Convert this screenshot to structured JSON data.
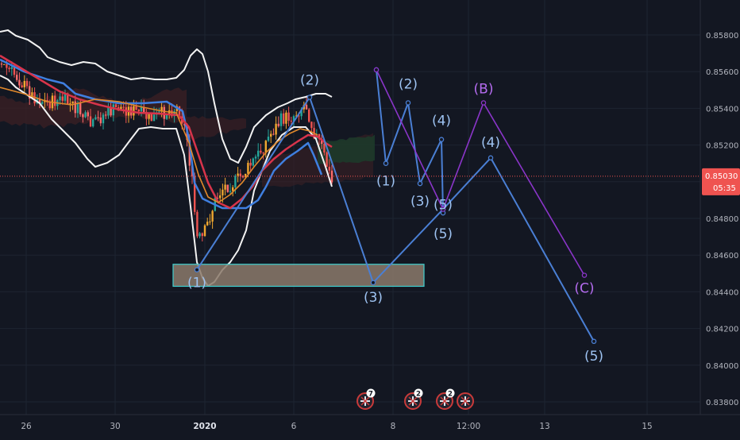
{
  "colors": {
    "background": "#131722",
    "grid": "#1e2431",
    "axis_text": "#b2b5be",
    "price_line": "#ef5350",
    "price_tag": "#ef5350",
    "wave_blue": "#4a7fd4",
    "wave_label_blue": "#9ec3f2",
    "wave_purple": "#8a35c9",
    "wave_label_purple": "#b56cf0",
    "bollinger": "#f2f2f2",
    "ma_blue": "#3f7fe0",
    "ma_red": "#d8344b",
    "ma_orange": "#e0882b",
    "support_fill": "#8c7a6b",
    "support_border": "#3fd0d0",
    "cloud_green": "#1d3a2a",
    "cloud_red": "#3a1f24"
  },
  "chart_data": {
    "type": "candlestick",
    "y_axis": {
      "min": 0.8375,
      "max": 0.8595,
      "ticks": [
        "0.85800",
        "0.85600",
        "0.85400",
        "0.85200",
        "0.85000",
        "0.84800",
        "0.84600",
        "0.84400",
        "0.84200",
        "0.84000",
        "0.83800"
      ],
      "tick_values": [
        0.858,
        0.856,
        0.854,
        0.852,
        0.85,
        0.848,
        0.846,
        0.844,
        0.842,
        0.84,
        0.838
      ]
    },
    "x_axis": {
      "labels": [
        "26",
        "30",
        "2020",
        "6",
        "8",
        "12:00",
        "13",
        "15"
      ],
      "bold": [
        "2020"
      ]
    },
    "current_price": {
      "value": 0.8503,
      "label": "0.85030",
      "countdown": "05:35"
    },
    "support_zone": {
      "top": 0.8455,
      "bottom": 0.8443,
      "start_label": "(1)",
      "end_label": "(3)"
    },
    "wave_blue_primary": {
      "points": [
        {
          "x": 0,
          "y": 0.8452,
          "label": "(1)"
        },
        {
          "x": 1,
          "y": 0.8546,
          "label": "(2)"
        },
        {
          "x": 2,
          "y": 0.8445,
          "label": "(3)"
        },
        {
          "x": 3,
          "y": 0.8485,
          "label": "(5)"
        },
        {
          "x": 4,
          "y": 0.8513,
          "label": "(4)"
        },
        {
          "x": 5,
          "y": 0.8413,
          "label": "(5)"
        }
      ]
    },
    "wave_blue_secondary": {
      "points": [
        {
          "x": 0,
          "y": 0.8561,
          "label": ""
        },
        {
          "x": 1,
          "y": 0.851,
          "label": "(1)"
        },
        {
          "x": 2,
          "y": 0.8543,
          "label": "(2)"
        },
        {
          "x": 3,
          "y": 0.8499,
          "label": "(3)"
        },
        {
          "x": 4,
          "y": 0.8523,
          "label": "(4)"
        },
        {
          "x": 5,
          "y": 0.8483,
          "label": "(5)"
        }
      ]
    },
    "wave_purple": {
      "points": [
        {
          "x": 0,
          "y": 0.8561,
          "label": ""
        },
        {
          "x": 1,
          "y": 0.8485,
          "label": ""
        },
        {
          "x": 2,
          "y": 0.8543,
          "label": "(B)"
        },
        {
          "x": 3,
          "y": 0.8449,
          "label": "(C)"
        }
      ]
    },
    "events": [
      {
        "badge": "7"
      },
      {
        "badge": "2"
      },
      {
        "badge": "2"
      },
      {
        "badge": ""
      }
    ]
  }
}
